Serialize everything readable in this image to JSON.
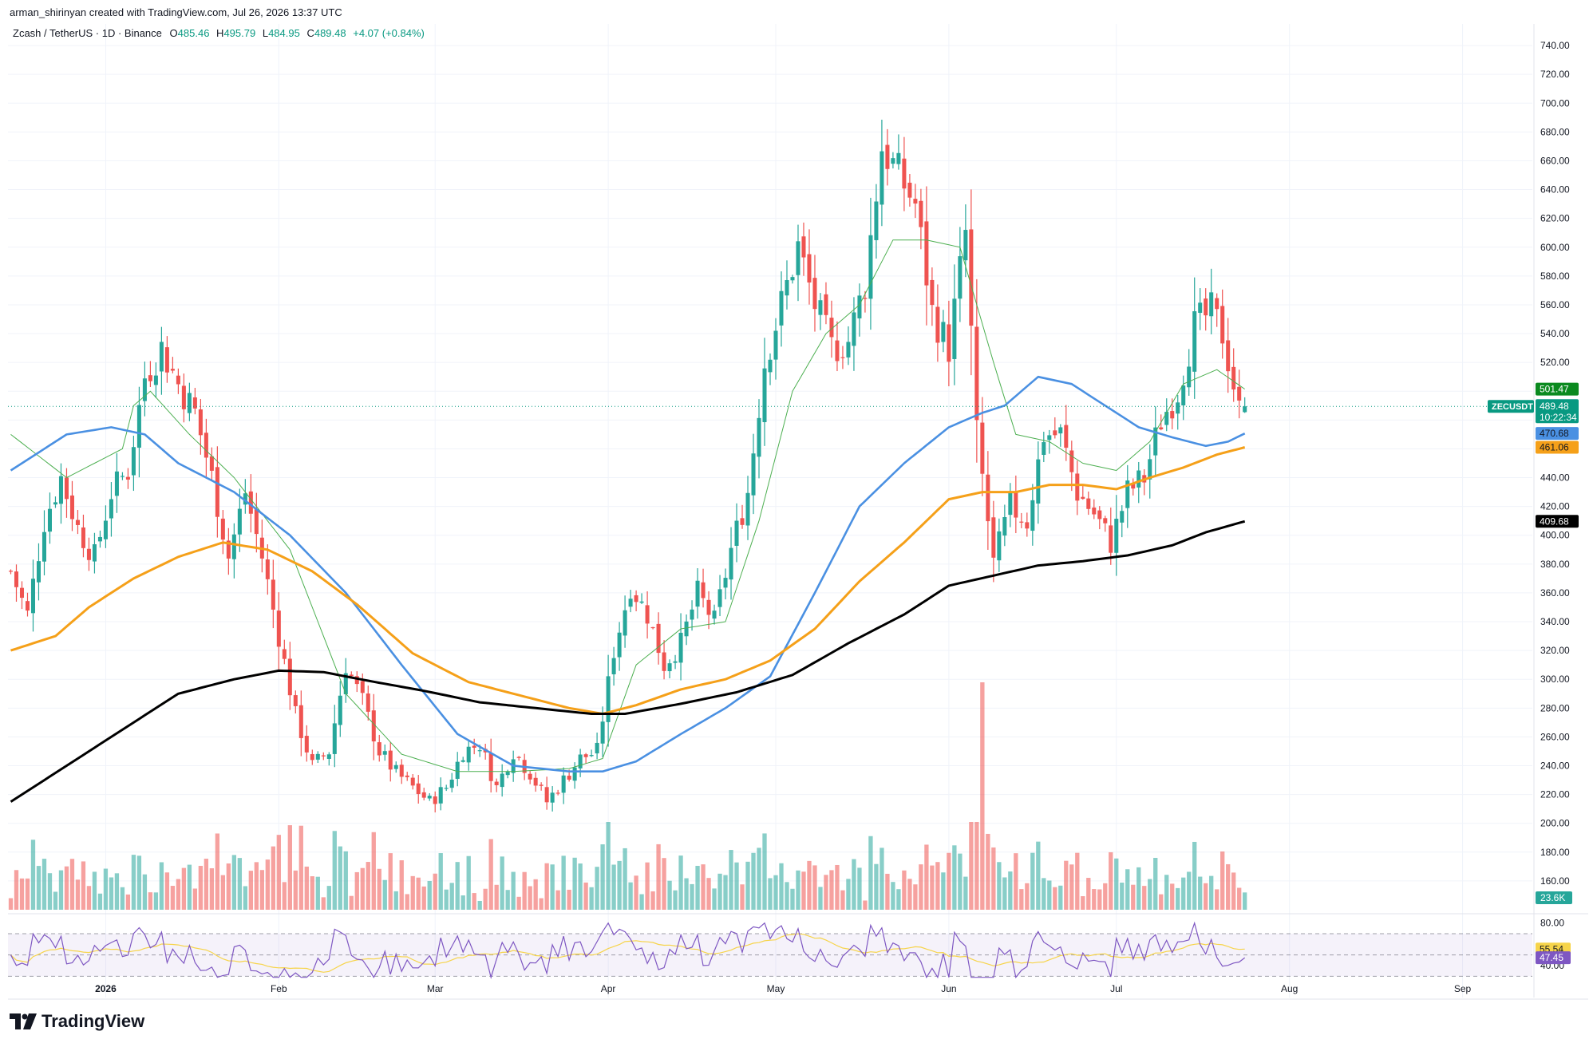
{
  "credit": "arman_shirinyan created with TradingView.com, Jul 26, 2026 13:37 UTC",
  "logo_text": "TradingView",
  "legend": {
    "pair": "Zcash / TetherUS · 1D · Binance",
    "o_label": "O",
    "o_value": "485.46",
    "h_label": "H",
    "h_value": "495.79",
    "l_label": "L",
    "l_value": "484.95",
    "c_label": "C",
    "c_value": "489.48",
    "change": "+4.07 (+0.84%)"
  },
  "colors": {
    "up": "#26a69a",
    "down": "#ef5350",
    "ma_fast": "#4caf50",
    "ma_blue": "#4a90e2",
    "ma_orange": "#f5a019",
    "ma_black": "#000000",
    "rsi": "#7e57c2",
    "rsi_ma": "#f6d44a"
  },
  "price_tags": [
    {
      "value": "501.47",
      "price": 501.47,
      "bg": "#0b8a1f",
      "fg": "#ffffff"
    },
    {
      "value": "489.48",
      "price": 489.48,
      "bg": "#089981",
      "fg": "#ffffff",
      "label": "ZECUSDT",
      "countdown": "10:22:34"
    },
    {
      "value": "470.68",
      "price": 470.68,
      "bg": "#4a90e2",
      "fg": "#131722"
    },
    {
      "value": "461.06",
      "price": 461.06,
      "bg": "#f5a019",
      "fg": "#131722"
    },
    {
      "value": "409.68",
      "price": 409.68,
      "bg": "#000000",
      "fg": "#ffffff"
    }
  ],
  "volume_tag": "23.6K",
  "rsi_tags": [
    {
      "value": "55.54",
      "bg": "#f6d44a",
      "fg": "#131722"
    },
    {
      "value": "47.45",
      "bg": "#7e57c2",
      "fg": "#ffffff"
    }
  ],
  "rsi_levels": {
    "upper": 70,
    "middle": 50,
    "lower": 30,
    "ticks": [
      "80.00",
      "40.00"
    ]
  },
  "chart_data": {
    "type": "candlestick",
    "symbol": "ZECUSDT",
    "timeframe": "1D",
    "y_ticks": [
      160,
      180,
      200,
      220,
      240,
      260,
      280,
      300,
      320,
      340,
      360,
      380,
      400,
      420,
      440,
      460,
      480,
      500,
      520,
      540,
      560,
      580,
      600,
      620,
      640,
      660,
      680,
      700,
      720,
      740
    ],
    "y_tick_labels": [
      "160.00",
      "180.00",
      "200.00",
      "220.00",
      "240.00",
      "260.00",
      "280.00",
      "300.00",
      "320.00",
      "340.00",
      "360.00",
      "380.00",
      "400.00",
      "420.00",
      "440.00",
      "",
      "",
      "",
      "520.00",
      "540.00",
      "560.00",
      "580.00",
      "600.00",
      "620.00",
      "640.00",
      "660.00",
      "680.00",
      "700.00",
      "720.00",
      "740.00"
    ],
    "ylim": [
      140,
      755
    ],
    "x_labels": [
      "2026",
      "Feb",
      "Mar",
      "Apr",
      "May",
      "Jun",
      "Jul",
      "Aug",
      "Sep"
    ],
    "x_label_days": [
      17,
      48,
      76,
      107,
      137,
      168,
      198,
      229,
      260
    ],
    "days_visible": 273,
    "ohlc_anchors": [
      [
        0,
        375
      ],
      [
        3,
        345
      ],
      [
        6,
        410
      ],
      [
        9,
        440
      ],
      [
        12,
        405
      ],
      [
        15,
        385
      ],
      [
        18,
        430
      ],
      [
        21,
        445
      ],
      [
        24,
        510
      ],
      [
        27,
        530
      ],
      [
        30,
        505
      ],
      [
        33,
        485
      ],
      [
        36,
        440
      ],
      [
        39,
        385
      ],
      [
        42,
        430
      ],
      [
        45,
        385
      ],
      [
        48,
        330
      ],
      [
        51,
        275
      ],
      [
        54,
        240
      ],
      [
        57,
        250
      ],
      [
        60,
        310
      ],
      [
        63,
        285
      ],
      [
        66,
        250
      ],
      [
        69,
        235
      ],
      [
        72,
        225
      ],
      [
        75,
        215
      ],
      [
        78,
        225
      ],
      [
        81,
        250
      ],
      [
        84,
        255
      ],
      [
        87,
        225
      ],
      [
        90,
        250
      ],
      [
        93,
        235
      ],
      [
        96,
        215
      ],
      [
        99,
        230
      ],
      [
        102,
        245
      ],
      [
        105,
        250
      ],
      [
        108,
        320
      ],
      [
        111,
        365
      ],
      [
        114,
        345
      ],
      [
        117,
        310
      ],
      [
        120,
        325
      ],
      [
        123,
        360
      ],
      [
        126,
        340
      ],
      [
        129,
        390
      ],
      [
        132,
        430
      ],
      [
        135,
        520
      ],
      [
        138,
        560
      ],
      [
        141,
        600
      ],
      [
        144,
        560
      ],
      [
        147,
        530
      ],
      [
        150,
        535
      ],
      [
        153,
        575
      ],
      [
        156,
        670
      ],
      [
        159,
        650
      ],
      [
        162,
        630
      ],
      [
        165,
        555
      ],
      [
        168,
        530
      ],
      [
        171,
        610
      ],
      [
        173,
        470
      ],
      [
        176,
        380
      ],
      [
        179,
        420
      ],
      [
        182,
        410
      ],
      [
        185,
        470
      ],
      [
        188,
        470
      ],
      [
        191,
        430
      ],
      [
        194,
        415
      ],
      [
        197,
        395
      ],
      [
        200,
        430
      ],
      [
        203,
        440
      ],
      [
        206,
        480
      ],
      [
        209,
        500
      ],
      [
        212,
        545
      ],
      [
        215,
        555
      ],
      [
        217,
        540
      ],
      [
        219,
        505
      ],
      [
        220,
        486
      ],
      [
        221,
        489.48
      ]
    ],
    "ma_series": [
      {
        "name": "",
        "color": "#4caf50",
        "points": [
          [
            0,
            470
          ],
          [
            10,
            440
          ],
          [
            20,
            460
          ],
          [
            22,
            490
          ],
          [
            25,
            500
          ],
          [
            32,
            470
          ],
          [
            40,
            440
          ],
          [
            50,
            390
          ],
          [
            60,
            290
          ],
          [
            70,
            248
          ],
          [
            80,
            236
          ],
          [
            90,
            236
          ],
          [
            100,
            238
          ],
          [
            106,
            245
          ],
          [
            112,
            310
          ],
          [
            120,
            335
          ],
          [
            128,
            340
          ],
          [
            134,
            410
          ],
          [
            140,
            500
          ],
          [
            146,
            540
          ],
          [
            152,
            560
          ],
          [
            158,
            605
          ],
          [
            164,
            605
          ],
          [
            170,
            600
          ],
          [
            176,
            520
          ],
          [
            180,
            470
          ],
          [
            186,
            465
          ],
          [
            192,
            450
          ],
          [
            198,
            445
          ],
          [
            204,
            465
          ],
          [
            210,
            505
          ],
          [
            216,
            515
          ],
          [
            221,
            501.47
          ]
        ]
      },
      {
        "name": "",
        "color": "#4a90e2",
        "points": [
          [
            0,
            445
          ],
          [
            10,
            470
          ],
          [
            18,
            475
          ],
          [
            24,
            470
          ],
          [
            30,
            450
          ],
          [
            40,
            430
          ],
          [
            50,
            400
          ],
          [
            60,
            360
          ],
          [
            70,
            310
          ],
          [
            80,
            262
          ],
          [
            90,
            240
          ],
          [
            100,
            236
          ],
          [
            106,
            236
          ],
          [
            112,
            243
          ],
          [
            120,
            262
          ],
          [
            128,
            280
          ],
          [
            136,
            302
          ],
          [
            144,
            360
          ],
          [
            152,
            420
          ],
          [
            160,
            450
          ],
          [
            168,
            475
          ],
          [
            174,
            485
          ],
          [
            178,
            490
          ],
          [
            184,
            510
          ],
          [
            190,
            505
          ],
          [
            196,
            490
          ],
          [
            202,
            475
          ],
          [
            208,
            468
          ],
          [
            214,
            462
          ],
          [
            218,
            465
          ],
          [
            221,
            470.68
          ]
        ]
      },
      {
        "name": "",
        "color": "#f5a019",
        "points": [
          [
            0,
            320
          ],
          [
            8,
            330
          ],
          [
            14,
            350
          ],
          [
            22,
            370
          ],
          [
            30,
            385
          ],
          [
            38,
            395
          ],
          [
            46,
            390
          ],
          [
            54,
            375
          ],
          [
            62,
            352
          ],
          [
            72,
            318
          ],
          [
            82,
            298
          ],
          [
            92,
            288
          ],
          [
            100,
            280
          ],
          [
            106,
            276
          ],
          [
            112,
            282
          ],
          [
            120,
            293
          ],
          [
            128,
            300
          ],
          [
            136,
            313
          ],
          [
            144,
            335
          ],
          [
            152,
            368
          ],
          [
            160,
            395
          ],
          [
            168,
            425
          ],
          [
            174,
            430
          ],
          [
            180,
            430
          ],
          [
            186,
            435
          ],
          [
            192,
            435
          ],
          [
            198,
            432
          ],
          [
            204,
            440
          ],
          [
            210,
            447
          ],
          [
            216,
            456
          ],
          [
            221,
            461.06
          ]
        ]
      },
      {
        "name": "",
        "color": "#000000",
        "points": [
          [
            0,
            215
          ],
          [
            10,
            240
          ],
          [
            20,
            265
          ],
          [
            30,
            290
          ],
          [
            40,
            300
          ],
          [
            48,
            306
          ],
          [
            56,
            305
          ],
          [
            64,
            299
          ],
          [
            74,
            292
          ],
          [
            84,
            284
          ],
          [
            94,
            280
          ],
          [
            104,
            276
          ],
          [
            110,
            276
          ],
          [
            120,
            283
          ],
          [
            130,
            291
          ],
          [
            140,
            303
          ],
          [
            150,
            325
          ],
          [
            160,
            345
          ],
          [
            168,
            365
          ],
          [
            176,
            372
          ],
          [
            184,
            379
          ],
          [
            192,
            382
          ],
          [
            200,
            386
          ],
          [
            208,
            393
          ],
          [
            214,
            402
          ],
          [
            221,
            409.68
          ]
        ]
      }
    ],
    "rsi_series": {
      "name": "",
      "ylim": [
        25,
        85
      ],
      "current": 47.45,
      "ma_current": 55.54
    }
  }
}
